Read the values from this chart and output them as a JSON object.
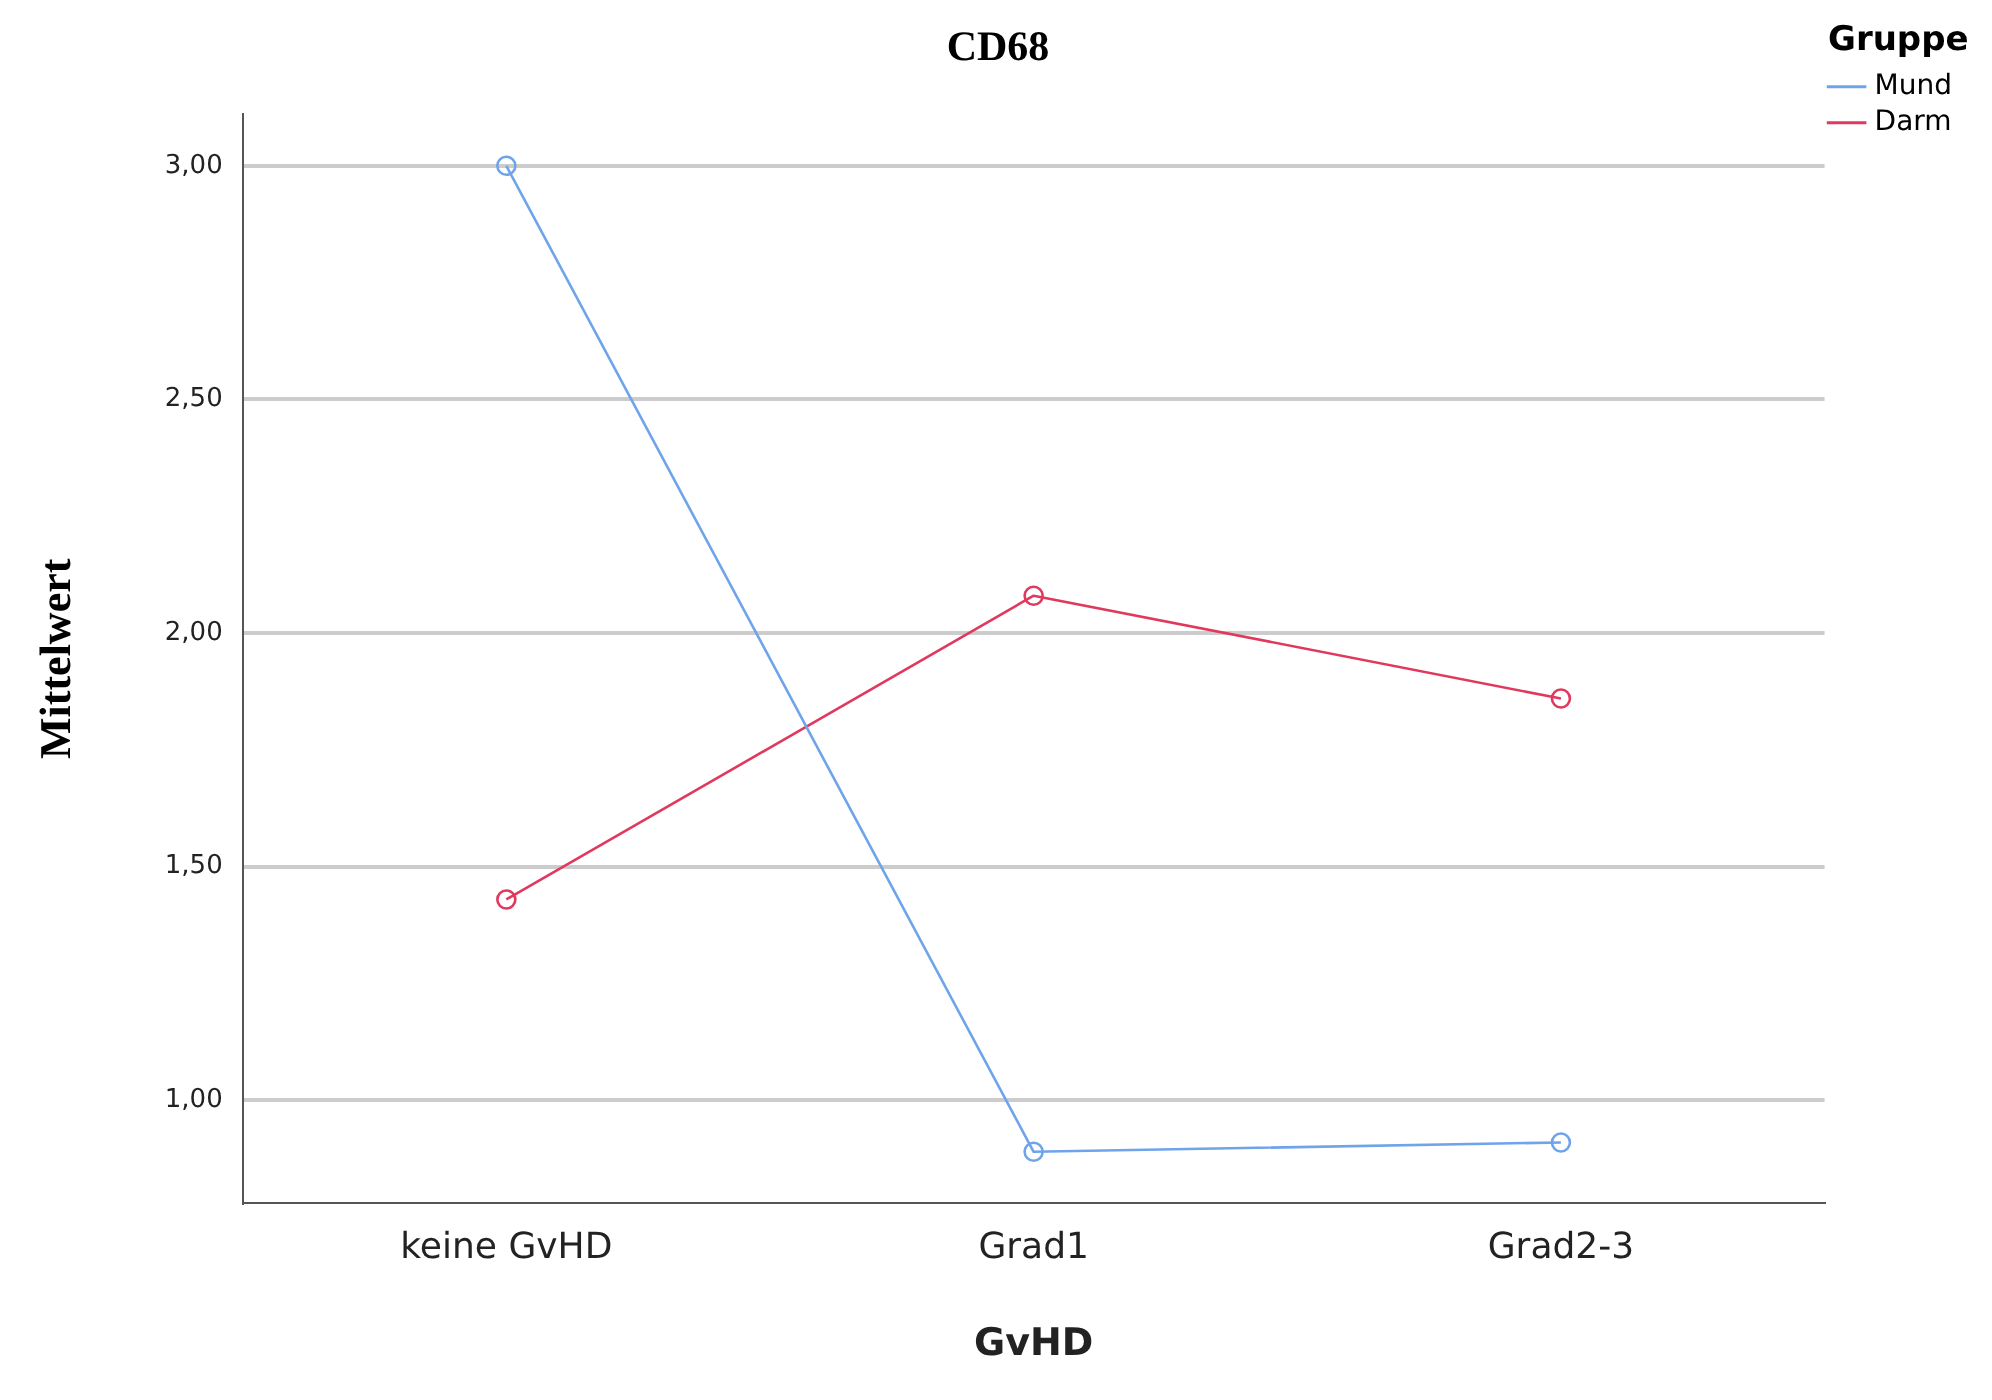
{
  "chart_data": {
    "type": "line",
    "title": "CD68",
    "xlabel": "GvHD",
    "ylabel": "Mittelwert",
    "legend_title": "Gruppe",
    "categories": [
      "keine GvHD",
      "Grad1",
      "Grad2-3"
    ],
    "series": [
      {
        "name": "Mund",
        "color": "#6fa4ea",
        "values": [
          3.0,
          0.89,
          0.91
        ]
      },
      {
        "name": "Darm",
        "color": "#e0395e",
        "values": [
          1.43,
          2.08,
          1.86
        ]
      }
    ],
    "ylim": [
      0.78,
      3.11
    ],
    "yticks": [
      {
        "value": 1,
        "label": "1,00"
      },
      {
        "value": 1.5,
        "label": "1,50"
      },
      {
        "value": 2,
        "label": "2,00"
      },
      {
        "value": 2.5,
        "label": "2,50"
      },
      {
        "value": 3,
        "label": "3,00"
      }
    ],
    "grid": "y",
    "legend": "top right",
    "marker": "circle",
    "line_style": "solid"
  }
}
